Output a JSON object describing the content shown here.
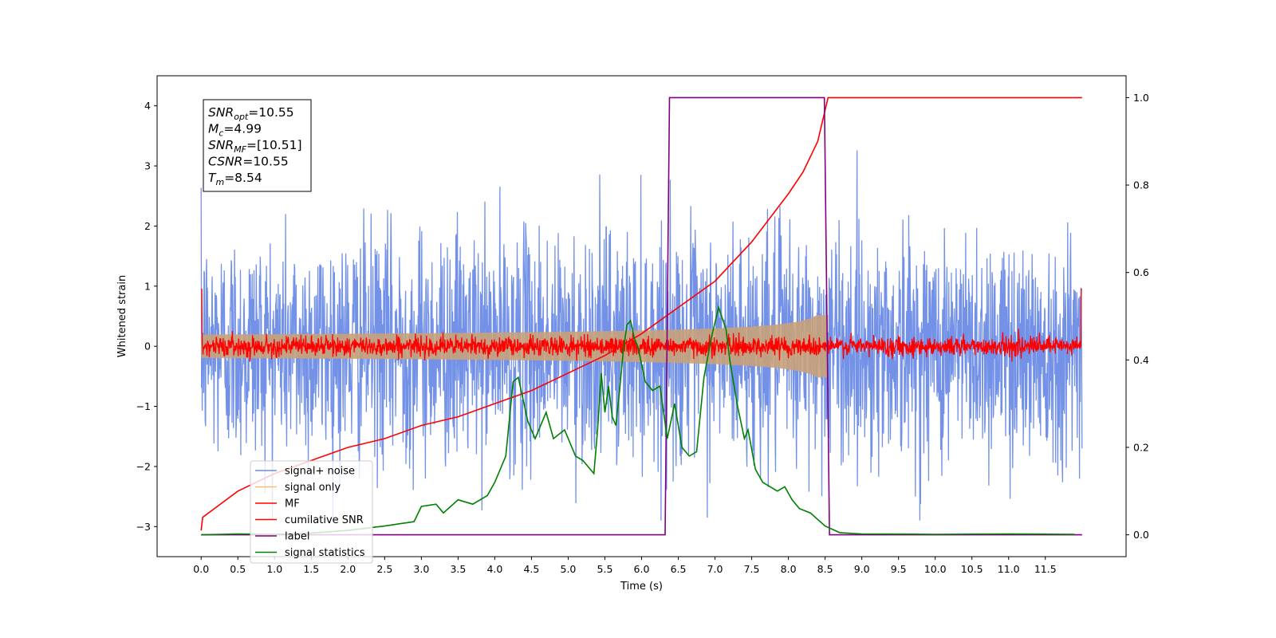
{
  "chart_data": {
    "type": "line",
    "xlabel": "Time (s)",
    "ylabel_left": "Whitened strain",
    "ylabel_right": "",
    "xlim": [
      -0.6,
      12.6
    ],
    "ylim_left": [
      -3.5,
      4.5
    ],
    "ylim_right": [
      -0.05,
      1.05
    ],
    "x_ticks": [
      "0.0",
      "0.5",
      "1.0",
      "1.5",
      "2.0",
      "2.5",
      "3.0",
      "3.5",
      "4.0",
      "4.5",
      "5.0",
      "5.5",
      "6.0",
      "6.5",
      "7.0",
      "7.5",
      "8.0",
      "8.5",
      "9.0",
      "9.5",
      "10.0",
      "10.5",
      "11.0",
      "11.5"
    ],
    "y_ticks_left": [
      "4",
      "3",
      "2",
      "1",
      "0",
      "−1",
      "−2",
      "−3"
    ],
    "y_ticks_right": [
      "1.0",
      "0.8",
      "0.6",
      "0.4",
      "0.2",
      "0.0"
    ],
    "grid": false,
    "legend_position": "lower-left",
    "colors": {
      "signal_noise": "#6a8be6",
      "signal_only": "#ffbb66",
      "mf": "#ff0000",
      "cumulative_snr": "#ff0000",
      "label": "#800080",
      "signal_statistics": "#008000"
    },
    "annotation": {
      "lines": [
        {
          "sym": "SNR",
          "sub": "opt",
          "value": "=10.55"
        },
        {
          "sym": "M",
          "sub": "c",
          "value": "=4.99"
        },
        {
          "sym": "SNR",
          "sub": "MF",
          "value": "=[10.51]"
        },
        {
          "sym": "CSNR",
          "sub": "",
          "value": "=10.55"
        },
        {
          "sym": "T",
          "sub": "m",
          "value": "=8.54"
        }
      ]
    },
    "series": [
      {
        "name": "signal+ noise",
        "axis": "left",
        "kind": "noise",
        "x_range": [
          0,
          12
        ],
        "amplitude_std": 0.95
      },
      {
        "name": "signal only",
        "axis": "left",
        "kind": "chirp",
        "x_range": [
          0,
          8.54
        ],
        "peak_amplitude": 0.65
      },
      {
        "name": "MF",
        "axis": "left",
        "kind": "noise",
        "x_range": [
          0,
          12
        ],
        "amplitude_std": 0.08
      },
      {
        "name": "cumilative SNR",
        "axis": "right",
        "kind": "line",
        "x": [
          0.0,
          0.02,
          0.5,
          1.0,
          1.5,
          2.0,
          2.5,
          3.0,
          3.5,
          4.0,
          4.5,
          5.0,
          5.5,
          6.0,
          6.5,
          7.0,
          7.5,
          8.0,
          8.2,
          8.4,
          8.54,
          9.0,
          10.0,
          11.0,
          12.0
        ],
        "y": [
          0.01,
          0.04,
          0.1,
          0.14,
          0.17,
          0.2,
          0.22,
          0.25,
          0.27,
          0.3,
          0.33,
          0.37,
          0.41,
          0.46,
          0.52,
          0.58,
          0.67,
          0.78,
          0.83,
          0.9,
          1.0,
          1.0,
          1.0,
          1.0,
          1.0
        ]
      },
      {
        "name": "label",
        "axis": "right",
        "kind": "line",
        "x": [
          0.0,
          6.32,
          6.38,
          8.49,
          8.56,
          12.0
        ],
        "y": [
          0.0,
          0.0,
          1.0,
          1.0,
          0.0,
          0.0
        ]
      },
      {
        "name": "signal statistics",
        "axis": "right",
        "kind": "line",
        "x": [
          0.0,
          0.5,
          1.0,
          1.5,
          2.0,
          2.5,
          2.9,
          3.0,
          3.2,
          3.3,
          3.5,
          3.7,
          3.9,
          4.0,
          4.15,
          4.25,
          4.32,
          4.45,
          4.55,
          4.7,
          4.8,
          4.95,
          5.1,
          5.2,
          5.3,
          5.35,
          5.4,
          5.45,
          5.5,
          5.55,
          5.6,
          5.65,
          5.7,
          5.75,
          5.8,
          5.85,
          5.9,
          5.95,
          6.05,
          6.15,
          6.25,
          6.35,
          6.45,
          6.55,
          6.65,
          6.75,
          6.85,
          6.95,
          7.05,
          7.15,
          7.2,
          7.3,
          7.4,
          7.45,
          7.55,
          7.65,
          7.75,
          7.85,
          7.95,
          8.05,
          8.15,
          8.3,
          8.5,
          8.7,
          9.0,
          10.0,
          11.0,
          11.9
        ],
        "y": [
          0.0,
          0.002,
          0.001,
          0.004,
          0.01,
          0.02,
          0.03,
          0.065,
          0.07,
          0.05,
          0.08,
          0.07,
          0.09,
          0.12,
          0.18,
          0.35,
          0.36,
          0.26,
          0.22,
          0.28,
          0.22,
          0.24,
          0.18,
          0.17,
          0.15,
          0.14,
          0.24,
          0.37,
          0.28,
          0.34,
          0.27,
          0.25,
          0.33,
          0.42,
          0.48,
          0.49,
          0.45,
          0.43,
          0.35,
          0.33,
          0.34,
          0.22,
          0.3,
          0.2,
          0.18,
          0.19,
          0.36,
          0.45,
          0.52,
          0.47,
          0.4,
          0.3,
          0.22,
          0.24,
          0.15,
          0.12,
          0.11,
          0.1,
          0.11,
          0.08,
          0.06,
          0.05,
          0.02,
          0.005,
          0.002,
          0.001,
          0.002,
          0.001
        ]
      }
    ]
  }
}
